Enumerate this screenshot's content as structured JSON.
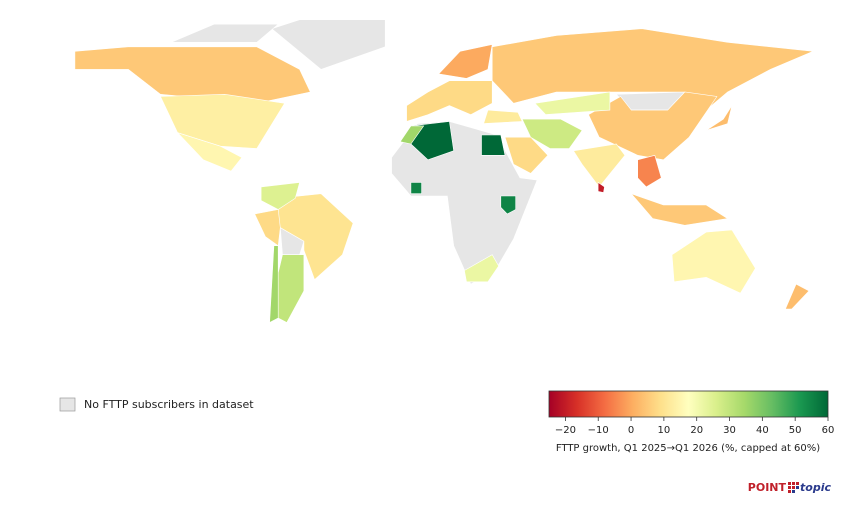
{
  "chart_data": {
    "type": "choropleth",
    "values": [
      5,
      13,
      15,
      5,
      5,
      12,
      22,
      8,
      0,
      60,
      60,
      35,
      8,
      28,
      10,
      30,
      25,
      8,
      35,
      22,
      55,
      55,
      -5,
      5,
      15,
      -20,
      3,
      3,
      12
    ],
    "no_data_label": "No FTTP subscribers in dataset",
    "no_data_color": "#e6e6e6",
    "colormap": [
      "#a50026",
      "#d73027",
      "#f46d43",
      "#fdae61",
      "#fee08b",
      "#ffffbf",
      "#d9ef8b",
      "#a6d96a",
      "#66bd63",
      "#1a9850",
      "#006837"
    ],
    "clim": [
      -25,
      60
    ],
    "colorbar_ticks": [
      {
        "value": -20,
        "label": "−20"
      },
      {
        "value": -10,
        "label": "−10"
      },
      0,
      10,
      20,
      30,
      40,
      50,
      60
    ],
    "colorbar_label": "FTTP growth, Q1 2025→Q1 2026 (%, capped at 60%)",
    "logo": {
      "left": "POINT",
      "right": "topic"
    }
  }
}
